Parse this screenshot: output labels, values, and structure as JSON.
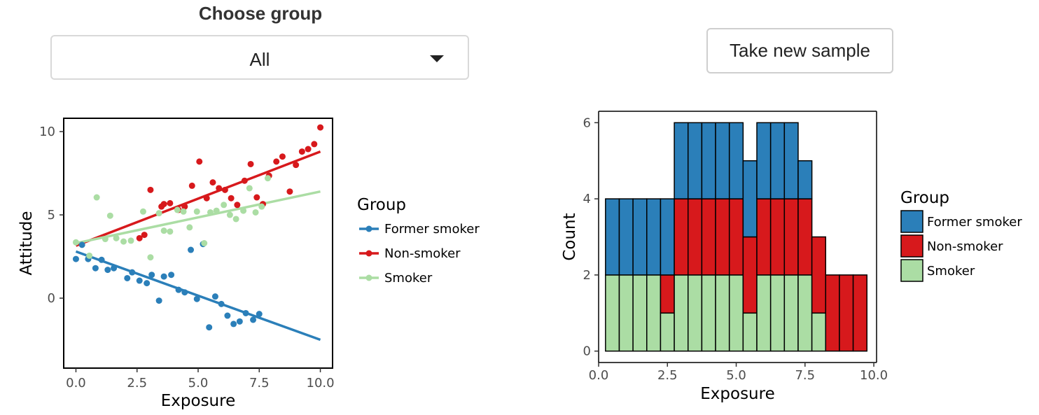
{
  "controls": {
    "group_select": {
      "label": "Choose group",
      "selected": "All"
    },
    "resample_button_label": "Take new sample"
  },
  "colors": {
    "former": "#2b7fb9",
    "non": "#d7191c",
    "smoker": "#abdda4",
    "smoker_line": "#abdda4"
  },
  "chart_data": [
    {
      "type": "scatter",
      "xlabel": "Exposure",
      "ylabel": "Attitude",
      "xlim": [
        -0.5,
        10.5
      ],
      "ylim": [
        -4.2,
        10.8
      ],
      "xticks": [
        "0.0",
        "2.5",
        "5.0",
        "7.5",
        "10.0"
      ],
      "xtick_values": [
        0,
        2.5,
        5,
        7.5,
        10
      ],
      "yticks": [
        "0",
        "5",
        "10"
      ],
      "ytick_values": [
        0,
        5,
        10
      ],
      "legend": {
        "title": "Group",
        "position": "right",
        "entries": [
          "Former smoker",
          "Non-smoker",
          "Smoker"
        ]
      },
      "series": [
        {
          "name": "Former smoker",
          "color_key": "former",
          "trend": [
            [
              0,
              2.8
            ],
            [
              10,
              -2.5
            ]
          ],
          "points": [
            [
              0,
              2.35
            ],
            [
              0.25,
              3.2
            ],
            [
              0.5,
              2.35
            ],
            [
              0.8,
              1.8
            ],
            [
              1.05,
              2.3
            ],
            [
              1.3,
              1.7
            ],
            [
              1.55,
              1.8
            ],
            [
              2.1,
              1.2
            ],
            [
              2.3,
              1.55
            ],
            [
              2.6,
              1.05
            ],
            [
              2.9,
              0.9
            ],
            [
              3.1,
              1.4
            ],
            [
              3.4,
              -0.15
            ],
            [
              3.6,
              1.3
            ],
            [
              3.9,
              1.4
            ],
            [
              4.2,
              0.5
            ],
            [
              4.45,
              0.35
            ],
            [
              4.7,
              2.9
            ],
            [
              4.95,
              -0.05
            ],
            [
              5.2,
              3.25
            ],
            [
              5.45,
              -1.75
            ],
            [
              5.7,
              0.1
            ],
            [
              5.95,
              -0.35
            ],
            [
              6.2,
              -1.05
            ],
            [
              6.45,
              -1.55
            ],
            [
              6.7,
              -1.4
            ],
            [
              6.95,
              -0.9
            ],
            [
              7.25,
              -1.3
            ],
            [
              7.5,
              -0.95
            ]
          ]
        },
        {
          "name": "Non-smoker",
          "color_key": "non",
          "trend": [
            [
              0,
              3.15
            ],
            [
              10,
              8.8
            ]
          ],
          "points": [
            [
              2.6,
              3.6
            ],
            [
              2.8,
              3.8
            ],
            [
              3.05,
              6.5
            ],
            [
              3.5,
              5.5
            ],
            [
              3.6,
              5.65
            ],
            [
              3.85,
              5.7
            ],
            [
              4.2,
              5.3
            ],
            [
              4.45,
              5.5
            ],
            [
              4.75,
              6.75
            ],
            [
              5.05,
              8.2
            ],
            [
              5.35,
              6.0
            ],
            [
              5.6,
              6.95
            ],
            [
              5.85,
              6.6
            ],
            [
              6.1,
              6.5
            ],
            [
              6.35,
              6.0
            ],
            [
              6.6,
              5.6
            ],
            [
              6.9,
              7.05
            ],
            [
              7.15,
              8.05
            ],
            [
              7.4,
              6.05
            ],
            [
              7.65,
              5.65
            ],
            [
              7.9,
              7.35
            ],
            [
              8.2,
              8.2
            ],
            [
              8.45,
              8.5
            ],
            [
              8.75,
              6.4
            ],
            [
              9.0,
              8.0
            ],
            [
              9.25,
              8.8
            ],
            [
              9.5,
              8.95
            ],
            [
              9.75,
              9.25
            ],
            [
              10.0,
              10.25
            ]
          ]
        },
        {
          "name": "Smoker",
          "color_key": "smoker",
          "trend": [
            [
              0,
              3.3
            ],
            [
              10,
              6.4
            ]
          ],
          "points": [
            [
              0,
              3.35
            ],
            [
              0.55,
              2.55
            ],
            [
              0.85,
              6.05
            ],
            [
              1.2,
              3.55
            ],
            [
              1.4,
              4.95
            ],
            [
              1.65,
              3.6
            ],
            [
              1.95,
              3.4
            ],
            [
              2.25,
              3.45
            ],
            [
              2.75,
              5.2
            ],
            [
              3.05,
              2.45
            ],
            [
              3.4,
              5.1
            ],
            [
              3.6,
              4.05
            ],
            [
              3.85,
              4.0
            ],
            [
              4.15,
              5.3
            ],
            [
              4.4,
              5.2
            ],
            [
              4.65,
              4.25
            ],
            [
              4.95,
              5.2
            ],
            [
              5.25,
              3.3
            ],
            [
              5.5,
              5.15
            ],
            [
              5.75,
              5.25
            ],
            [
              6.05,
              5.6
            ],
            [
              6.3,
              5.0
            ],
            [
              6.55,
              4.75
            ],
            [
              6.85,
              5.25
            ],
            [
              7.1,
              6.6
            ],
            [
              7.35,
              5.15
            ],
            [
              7.6,
              5.5
            ],
            [
              7.85,
              7.2
            ]
          ]
        }
      ]
    },
    {
      "type": "bar",
      "stacked": true,
      "xlabel": "Exposure",
      "ylabel": "Count",
      "xlim": [
        0,
        10.1
      ],
      "ylim": [
        -0.3,
        6.3
      ],
      "xticks": [
        "0.0",
        "2.5",
        "5.0",
        "7.5",
        "10.0"
      ],
      "xtick_values": [
        0,
        2.5,
        5,
        7.5,
        10
      ],
      "yticks": [
        "0",
        "2",
        "4",
        "6"
      ],
      "ytick_values": [
        0,
        2,
        4,
        6
      ],
      "legend": {
        "title": "Group",
        "position": "right",
        "entries": [
          "Former smoker",
          "Non-smoker",
          "Smoker"
        ]
      },
      "bin_width": 0.5,
      "bin_starts": [
        0.25,
        0.75,
        1.25,
        1.75,
        2.25,
        2.75,
        3.25,
        3.75,
        4.25,
        4.75,
        5.25,
        5.75,
        6.25,
        6.75,
        7.25,
        7.75,
        8.25,
        8.75,
        9.25
      ],
      "series": [
        {
          "name": "Smoker",
          "color_key": "smoker",
          "values": [
            2,
            2,
            2,
            2,
            1,
            2,
            2,
            2,
            2,
            2,
            1,
            2,
            2,
            2,
            2,
            1,
            0,
            0,
            0
          ]
        },
        {
          "name": "Non-smoker",
          "color_key": "non",
          "values": [
            0,
            0,
            0,
            0,
            1,
            2,
            2,
            2,
            2,
            2,
            2,
            2,
            2,
            2,
            2,
            2,
            2,
            2,
            2
          ]
        },
        {
          "name": "Former smoker",
          "color_key": "former",
          "values": [
            2,
            2,
            2,
            2,
            2,
            2,
            2,
            2,
            2,
            2,
            2,
            2,
            2,
            2,
            1,
            0,
            0,
            0,
            0
          ]
        }
      ]
    }
  ]
}
